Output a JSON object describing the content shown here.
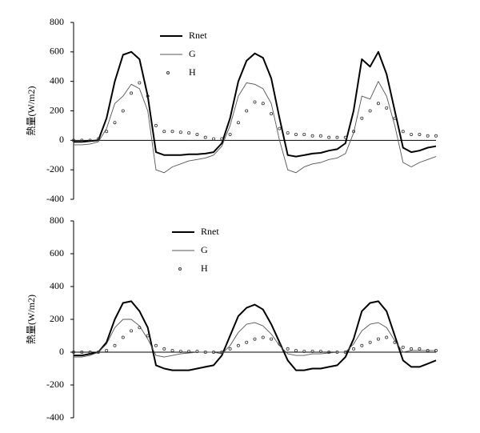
{
  "chart_data": [
    {
      "type": "line",
      "y_label": "熱量(W/m2)",
      "categories": [
        null,
        null,
        null,
        null,
        null,
        null,
        null,
        null,
        null,
        null,
        null,
        null,
        null,
        null,
        null,
        null,
        null,
        null,
        null,
        null,
        null,
        null,
        null,
        null,
        null,
        null,
        null,
        null,
        null,
        null,
        null,
        null,
        null,
        null,
        null,
        null,
        null,
        null,
        null,
        null,
        null,
        null,
        null,
        null,
        null
      ],
      "ylim": [
        -400,
        800
      ],
      "yticks": [
        -400,
        -200,
        0,
        200,
        400,
        600,
        800
      ],
      "series": [
        {
          "name": "Rnet",
          "color": "#000000",
          "style": "thick",
          "values": [
            -10,
            -10,
            -5,
            0,
            150,
            400,
            580,
            600,
            550,
            300,
            -80,
            -100,
            -100,
            -100,
            -95,
            -95,
            -90,
            -80,
            -20,
            150,
            400,
            540,
            590,
            560,
            420,
            150,
            -100,
            -110,
            -100,
            -90,
            -85,
            -70,
            -60,
            -20,
            200,
            550,
            500,
            600,
            450,
            200,
            -50,
            -80,
            -70,
            -50,
            -40
          ]
        },
        {
          "name": "G",
          "color": "#555555",
          "style": "thin",
          "values": [
            -30,
            -30,
            -25,
            -10,
            80,
            250,
            300,
            380,
            350,
            200,
            -200,
            -220,
            -180,
            -160,
            -140,
            -130,
            -120,
            -100,
            -40,
            100,
            300,
            390,
            380,
            350,
            250,
            0,
            -200,
            -220,
            -180,
            -160,
            -150,
            -130,
            -120,
            -90,
            50,
            300,
            280,
            400,
            300,
            100,
            -150,
            -180,
            -150,
            -130,
            -110
          ]
        },
        {
          "name": "H",
          "color": "#333333",
          "style": "dots",
          "values": [
            0,
            0,
            0,
            10,
            60,
            120,
            200,
            320,
            390,
            300,
            100,
            60,
            60,
            55,
            50,
            40,
            20,
            10,
            10,
            40,
            120,
            200,
            260,
            250,
            180,
            80,
            50,
            40,
            40,
            30,
            30,
            20,
            20,
            20,
            60,
            150,
            200,
            250,
            220,
            150,
            60,
            40,
            40,
            30,
            30
          ]
        }
      ]
    },
    {
      "type": "line",
      "y_label": "熱量(W/m2)",
      "categories": [
        null,
        null,
        null,
        null,
        null,
        null,
        null,
        null,
        null,
        null,
        null,
        null,
        null,
        null,
        null,
        null,
        null,
        null,
        null,
        null,
        null,
        null,
        null,
        null,
        null,
        null,
        null,
        null,
        null,
        null,
        null,
        null,
        null,
        null,
        null,
        null,
        null,
        null,
        null,
        null,
        null,
        null,
        null,
        null,
        null
      ],
      "ylim": [
        -400,
        800
      ],
      "yticks": [
        -400,
        -200,
        0,
        200,
        400,
        600,
        800
      ],
      "series": [
        {
          "name": "Rnet",
          "color": "#000000",
          "style": "thick",
          "values": [
            -20,
            -20,
            -10,
            0,
            60,
            200,
            300,
            310,
            250,
            150,
            -80,
            -100,
            -110,
            -110,
            -110,
            -100,
            -90,
            -80,
            -20,
            100,
            220,
            270,
            290,
            260,
            170,
            60,
            -50,
            -110,
            -110,
            -100,
            -100,
            -90,
            -80,
            -30,
            80,
            250,
            300,
            310,
            250,
            100,
            -50,
            -90,
            -90,
            -70,
            -50
          ]
        },
        {
          "name": "G",
          "color": "#555555",
          "style": "thin",
          "values": [
            -30,
            -30,
            -20,
            0,
            50,
            150,
            200,
            200,
            160,
            80,
            -20,
            -30,
            -20,
            -10,
            -5,
            0,
            0,
            0,
            -10,
            40,
            120,
            170,
            180,
            160,
            110,
            40,
            -10,
            -20,
            -20,
            -10,
            -10,
            -5,
            0,
            0,
            50,
            130,
            170,
            180,
            150,
            70,
            0,
            10,
            10,
            10,
            10
          ]
        },
        {
          "name": "H",
          "color": "#333333",
          "style": "dots",
          "values": [
            0,
            0,
            0,
            0,
            10,
            40,
            90,
            130,
            150,
            100,
            40,
            20,
            10,
            5,
            5,
            5,
            0,
            0,
            0,
            20,
            40,
            60,
            80,
            90,
            80,
            50,
            20,
            10,
            5,
            5,
            5,
            0,
            0,
            0,
            20,
            40,
            60,
            80,
            90,
            60,
            30,
            20,
            20,
            10,
            10
          ]
        }
      ]
    }
  ]
}
